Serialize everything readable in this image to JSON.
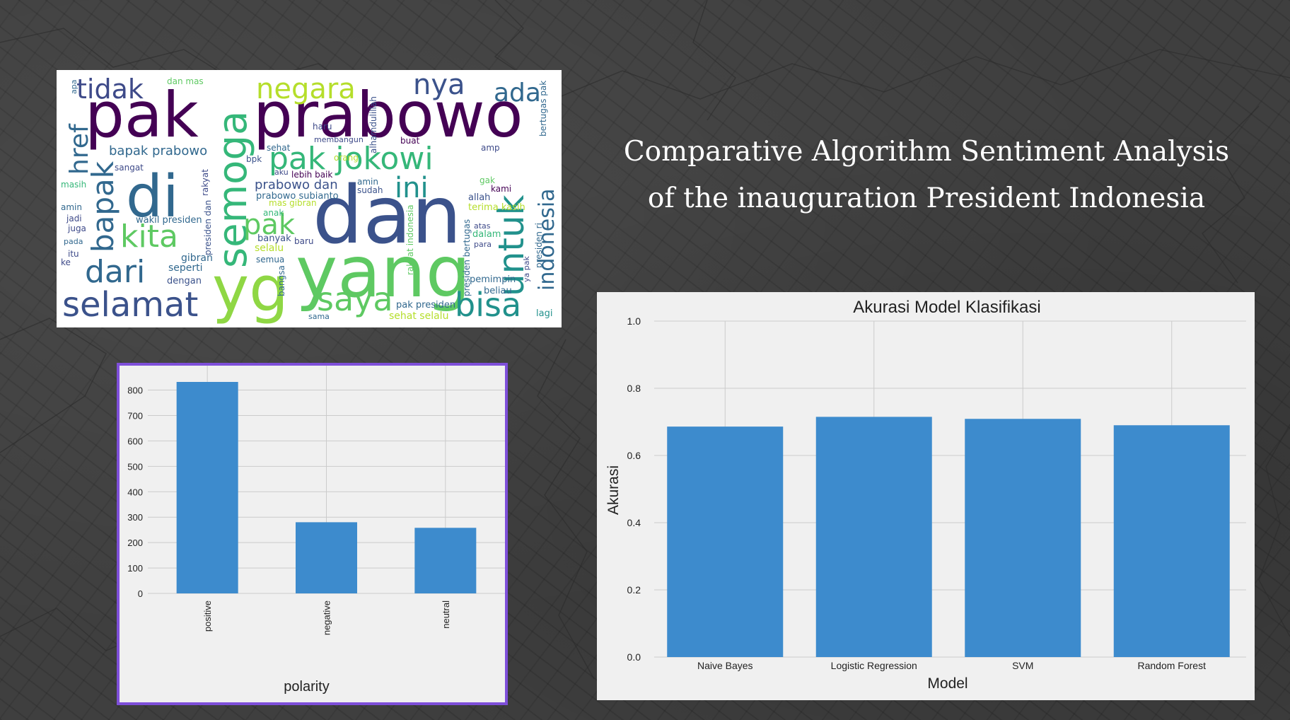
{
  "page": {
    "title_line1": "Comparative Algorithm Sentiment Analysis",
    "title_line2": "of the inauguration President Indonesia"
  },
  "wordcloud": {
    "words": [
      {
        "text": "pak",
        "color": "#440154"
      },
      {
        "text": "prabowo",
        "color": "#440154"
      },
      {
        "text": "dan",
        "color": "#3b528b"
      },
      {
        "text": "di",
        "color": "#31688e"
      },
      {
        "text": "yang",
        "color": "#5ec962"
      },
      {
        "text": "yg",
        "color": "#8fd744"
      },
      {
        "text": "semoga",
        "color": "#35b779"
      },
      {
        "text": "untuk",
        "color": "#21918c"
      },
      {
        "text": "selamat",
        "color": "#3b528b"
      },
      {
        "text": "saya",
        "color": "#5ec962"
      },
      {
        "text": "bisa",
        "color": "#21918c"
      },
      {
        "text": "kita",
        "color": "#5ec962"
      },
      {
        "text": "dari",
        "color": "#31688e"
      },
      {
        "text": "bapak",
        "color": "#31688e"
      },
      {
        "text": "pak jokowi",
        "color": "#35b779"
      },
      {
        "text": "negara",
        "color": "#b5de2b"
      },
      {
        "text": "tidak",
        "color": "#3e4a89"
      },
      {
        "text": "nya",
        "color": "#3b528b"
      },
      {
        "text": "ada",
        "color": "#31688e"
      },
      {
        "text": "href",
        "color": "#31688e"
      },
      {
        "text": "ini",
        "color": "#21918c"
      },
      {
        "text": "pak",
        "color": "#5ec962"
      },
      {
        "text": "indonesia",
        "color": "#31688e"
      },
      {
        "text": "bapak prabowo",
        "color": "#31688e"
      },
      {
        "text": "prabowo dan",
        "color": "#3b528b"
      },
      {
        "text": "wakil presiden",
        "color": "#31688e"
      },
      {
        "text": "selalu",
        "color": "#b5de2b"
      },
      {
        "text": "banyak",
        "color": "#3b528b"
      },
      {
        "text": "gibran",
        "color": "#31688e"
      },
      {
        "text": "seperti",
        "color": "#31688e"
      },
      {
        "text": "dengan",
        "color": "#3b528b"
      },
      {
        "text": "pak presiden",
        "color": "#31688e"
      },
      {
        "text": "sehat selalu",
        "color": "#b5de2b"
      },
      {
        "text": "lagi",
        "color": "#21918c"
      },
      {
        "text": "terima kasih",
        "color": "#b5de2b"
      },
      {
        "text": "pemimpin",
        "color": "#31688e"
      },
      {
        "text": "beliau",
        "color": "#31688e"
      },
      {
        "text": "dalam",
        "color": "#35b779"
      },
      {
        "text": "allah",
        "color": "#3b528b"
      },
      {
        "text": "kami",
        "color": "#440154"
      },
      {
        "text": "masih",
        "color": "#35b779"
      },
      {
        "text": "amin",
        "color": "#31688e"
      },
      {
        "text": "jadi",
        "color": "#3e4a89"
      },
      {
        "text": "juga",
        "color": "#3e4a89"
      },
      {
        "text": "sangat",
        "color": "#3e4a89"
      },
      {
        "text": "haru",
        "color": "#3e4a89"
      },
      {
        "text": "orang",
        "color": "#b5de2b"
      },
      {
        "text": "lebih baik",
        "color": "#440154"
      },
      {
        "text": "sudah",
        "color": "#3b528b"
      },
      {
        "text": "amin",
        "color": "#31688e"
      },
      {
        "text": "semua",
        "color": "#31688e"
      },
      {
        "text": "anak",
        "color": "#35b779"
      },
      {
        "text": "baru",
        "color": "#3e4a89"
      },
      {
        "text": "rakyat",
        "color": "#3e4a89"
      },
      {
        "text": "prabowo subianto",
        "color": "#31688e"
      },
      {
        "text": "presiden dan",
        "color": "#3b528b"
      },
      {
        "text": "dan mas",
        "color": "#5ec962"
      },
      {
        "text": "alhamdulillah",
        "color": "#3b528b"
      },
      {
        "text": "bertugas pak",
        "color": "#31688e"
      },
      {
        "text": "sehat",
        "color": "#31688e"
      },
      {
        "text": "membangun",
        "color": "#3e4a89"
      },
      {
        "text": "presiden bertugas",
        "color": "#31688e"
      },
      {
        "text": "rakyat indonesia",
        "color": "#5ec962"
      },
      {
        "text": "presiden ri",
        "color": "#31688e"
      },
      {
        "text": "mas gibran",
        "color": "#b5de2b"
      },
      {
        "text": "amp",
        "color": "#3e4a89"
      },
      {
        "text": "gak",
        "color": "#5ec962"
      },
      {
        "text": "itu",
        "color": "#3e4a89"
      },
      {
        "text": "ke",
        "color": "#3e4a89"
      },
      {
        "text": "pada",
        "color": "#31688e"
      },
      {
        "text": "apa",
        "color": "#31688e"
      },
      {
        "text": "bpk",
        "color": "#3b528b"
      },
      {
        "text": "buat",
        "color": "#440154"
      },
      {
        "text": "aku",
        "color": "#3e4a89"
      },
      {
        "text": "ya pak",
        "color": "#3e4a89"
      },
      {
        "text": "bangsa",
        "color": "#31688e"
      },
      {
        "text": "sama",
        "color": "#31688e"
      },
      {
        "text": "atas",
        "color": "#3e4a89"
      },
      {
        "text": "para",
        "color": "#3e4a89"
      }
    ]
  },
  "chart_data": [
    {
      "type": "bar",
      "title": "",
      "xlabel": "polarity",
      "ylabel": "",
      "categories": [
        "positive",
        "negative",
        "neutral"
      ],
      "values": [
        832,
        280,
        258
      ],
      "ylim": [
        0,
        832
      ],
      "yticks": [
        0,
        100,
        200,
        300,
        400,
        500,
        600,
        700,
        800
      ],
      "grid": true,
      "bar_color": "#3d8bcd"
    },
    {
      "type": "bar",
      "title": "Akurasi Model Klasifikasi",
      "xlabel": "Model",
      "ylabel": "Akurasi",
      "categories": [
        "Naive Bayes",
        "Logistic Regression",
        "SVM",
        "Random Forest"
      ],
      "values": [
        0.686,
        0.715,
        0.709,
        0.69
      ],
      "ylim": [
        0,
        1.0
      ],
      "yticks": [
        "0.0",
        "0.2",
        "0.4",
        "0.6",
        "0.8",
        "1.0"
      ],
      "grid": true,
      "bar_color": "#3d8bcd"
    }
  ]
}
